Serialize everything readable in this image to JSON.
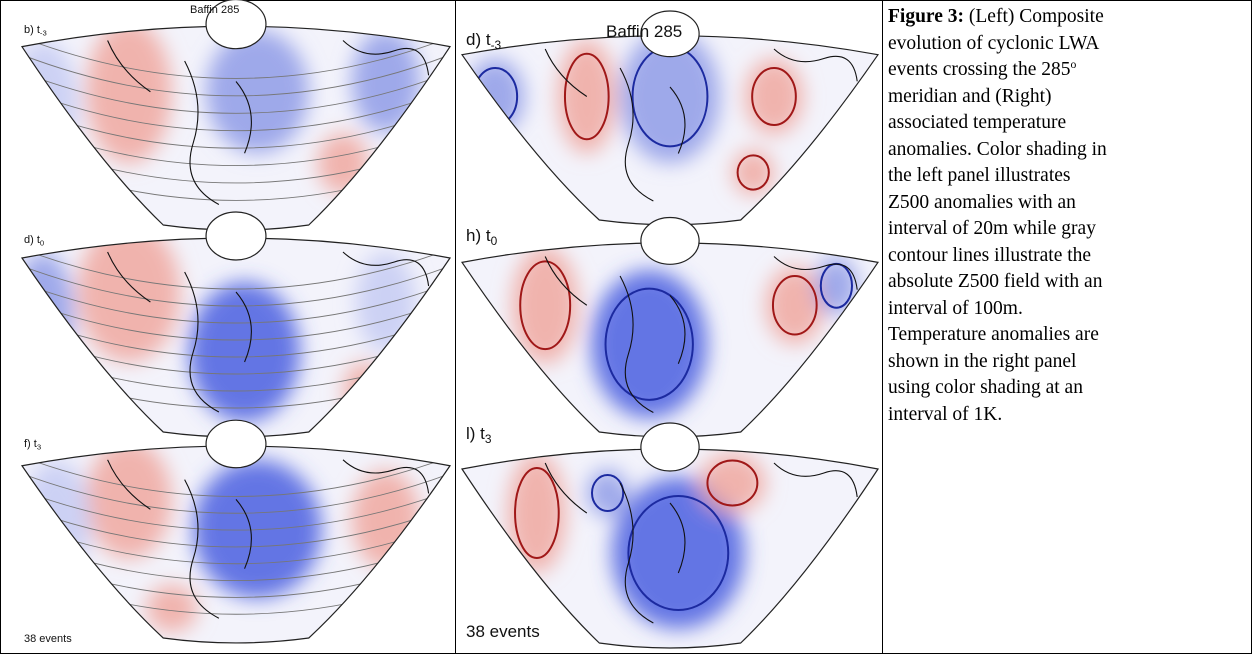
{
  "figure": {
    "left": {
      "title": "Baffin 285",
      "panels": [
        {
          "prefix": "b) t",
          "sub": "-3"
        },
        {
          "prefix": "d) t",
          "sub": "0"
        },
        {
          "prefix": "f) t",
          "sub": "3"
        }
      ],
      "footer": "38 events"
    },
    "right": {
      "title": "Baffin 285",
      "panels": [
        {
          "prefix": "d) t",
          "sub": "-3"
        },
        {
          "prefix": "h) t",
          "sub": "0"
        },
        {
          "prefix": "l) t",
          "sub": "3"
        }
      ],
      "footer": "38 events"
    },
    "caption": {
      "label": "Figure 3:",
      "lines": [
        "(Left) Composite",
        "evolution of cyclonic LWA",
        "events crossing the 285",
        "meridian and (Right)",
        "associated temperature",
        "anomalies.  Color shading in",
        "the left panel illustrates",
        "Z500 anomalies with an",
        "interval of 20m while gray",
        "contour lines illustrate the",
        "absolute Z500 field with an",
        "interval of 100m.",
        "Temperature anomalies are",
        "shown in the right panel",
        "using color shading at an",
        "interval of 1K."
      ],
      "superscript": "o"
    }
  }
}
